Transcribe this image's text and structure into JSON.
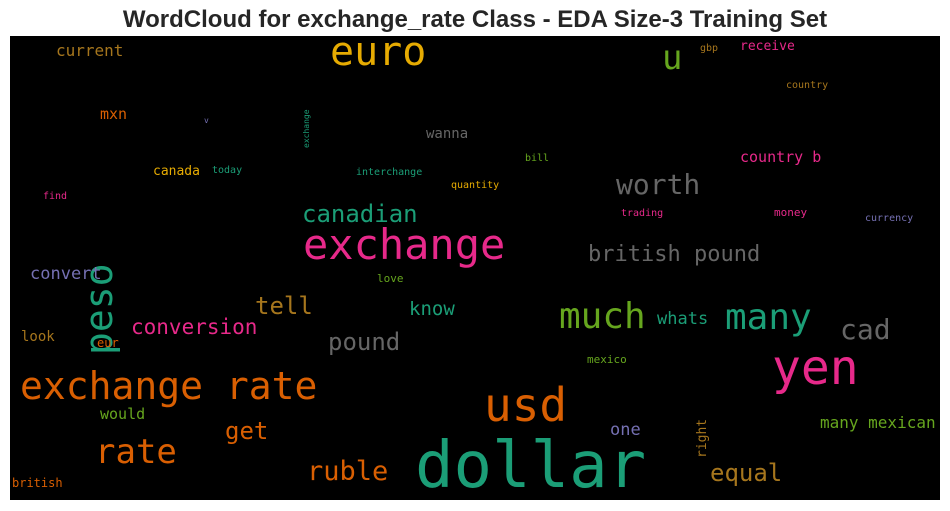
{
  "title": "WordCloud for exchange_rate Class - EDA Size-3 Training Set",
  "chart_data": {
    "type": "wordcloud",
    "background": "#000000",
    "words": [
      {
        "text": "dollar",
        "color": "#1b9e77"
      },
      {
        "text": "exchange",
        "color": "#e7298a"
      },
      {
        "text": "exchange rate",
        "color": "#d95f02"
      },
      {
        "text": "yen",
        "color": "#e7298a"
      },
      {
        "text": "usd",
        "color": "#d95f02"
      },
      {
        "text": "euro",
        "color": "#e6ab02"
      },
      {
        "text": "peso",
        "color": "#1b9e77"
      },
      {
        "text": "rate",
        "color": "#d95f02"
      },
      {
        "text": "much",
        "color": "#66a61e"
      },
      {
        "text": "many",
        "color": "#1b9e77"
      },
      {
        "text": "worth",
        "color": "#666666"
      },
      {
        "text": "u",
        "color": "#66a61e"
      },
      {
        "text": "cad",
        "color": "#666666"
      },
      {
        "text": "ruble",
        "color": "#d95f02"
      },
      {
        "text": "equal",
        "color": "#a6761d"
      },
      {
        "text": "canadian",
        "color": "#1b9e77"
      },
      {
        "text": "british pound",
        "color": "#666666"
      },
      {
        "text": "pound",
        "color": "#666666"
      },
      {
        "text": "conversion",
        "color": "#e7298a"
      },
      {
        "text": "tell",
        "color": "#a6761d"
      },
      {
        "text": "get",
        "color": "#d95f02"
      },
      {
        "text": "know",
        "color": "#1b9e77"
      },
      {
        "text": "convert",
        "color": "#7570b3"
      },
      {
        "text": "one",
        "color": "#7570b3"
      },
      {
        "text": "many mexican",
        "color": "#66a61e"
      },
      {
        "text": "whats",
        "color": "#1b9e77"
      },
      {
        "text": "country b",
        "color": "#e7298a"
      },
      {
        "text": "current",
        "color": "#a6761d"
      },
      {
        "text": "mxn",
        "color": "#d95f02"
      },
      {
        "text": "would",
        "color": "#66a61e"
      },
      {
        "text": "wanna",
        "color": "#666666"
      },
      {
        "text": "receive",
        "color": "#e7298a"
      },
      {
        "text": "canada",
        "color": "#e6ab02"
      },
      {
        "text": "look",
        "color": "#a6761d"
      },
      {
        "text": "right",
        "color": "#a6761d"
      },
      {
        "text": "eur",
        "color": "#d95f02"
      },
      {
        "text": "british",
        "color": "#d95f02"
      },
      {
        "text": "mexico",
        "color": "#66a61e"
      },
      {
        "text": "love",
        "color": "#66a61e"
      },
      {
        "text": "money",
        "color": "#e7298a"
      },
      {
        "text": "currency",
        "color": "#7570b3"
      },
      {
        "text": "trading",
        "color": "#e7298a"
      },
      {
        "text": "interchange",
        "color": "#1b9e77"
      },
      {
        "text": "quantity",
        "color": "#e6ab02"
      },
      {
        "text": "today",
        "color": "#1b9e77"
      },
      {
        "text": "bill",
        "color": "#66a61e"
      },
      {
        "text": "find",
        "color": "#e7298a"
      },
      {
        "text": "country",
        "color": "#a6761d"
      },
      {
        "text": "gbp",
        "color": "#a6761d"
      },
      {
        "text": "exchange",
        "color": "#1b9e77"
      },
      {
        "text": "v",
        "color": "#7570b3"
      }
    ]
  }
}
